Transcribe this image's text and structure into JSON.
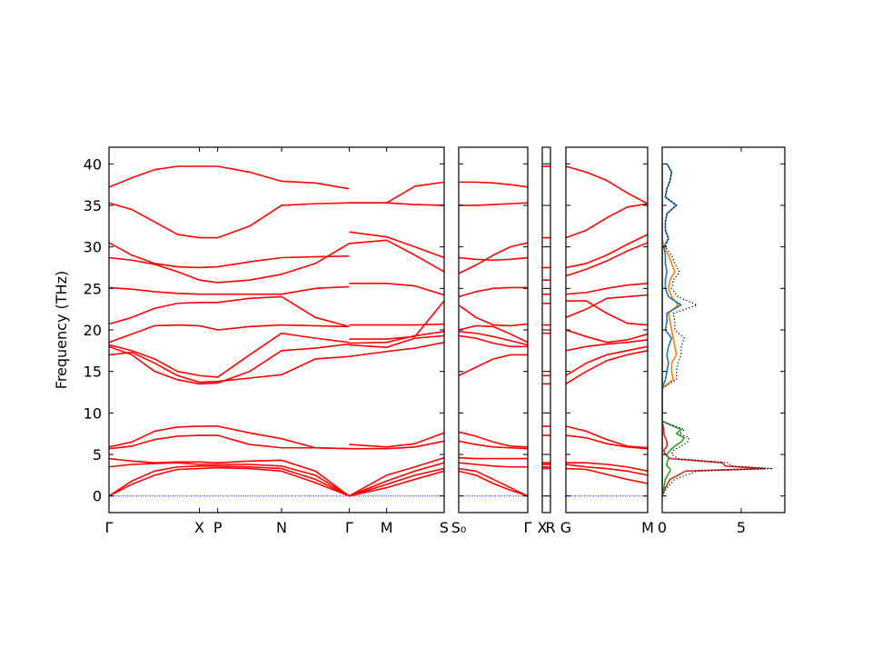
{
  "chart_data": [
    {
      "type": "line",
      "ylabel": "Frequency (THz)",
      "color": "#ff0000",
      "xlim": [
        0,
        3.67
      ],
      "ylim": [
        -2,
        42
      ],
      "yticks": [
        0,
        5,
        10,
        15,
        20,
        25,
        30,
        35,
        40
      ],
      "xticks": [
        {
          "value": 0,
          "label": "Γ"
        },
        {
          "value": 0.99,
          "label": "X"
        },
        {
          "value": 1.19,
          "label": "P"
        },
        {
          "value": 1.89,
          "label": "N"
        },
        {
          "value": 2.63,
          "label": "Γ"
        },
        {
          "value": 3.04,
          "label": "M"
        },
        {
          "value": 3.67,
          "label": "S"
        }
      ],
      "zero_line": true,
      "zero_line_color": "#0000ff",
      "x": [
        0,
        0.25,
        0.5,
        0.75,
        0.99,
        1.19,
        1.54,
        1.89,
        2.26,
        2.63,
        2.63,
        2.63,
        3.04,
        3.35,
        3.67
      ],
      "series": [
        {
          "values": [
            37.2,
            38.3,
            39.3,
            39.7,
            39.7,
            39.7,
            39.0,
            37.9,
            37.7,
            37.0,
            null,
            35.3,
            35.3,
            37.3,
            37.8
          ]
        },
        {
          "values": [
            35.3,
            34.5,
            33.0,
            31.5,
            31.1,
            31.1,
            32.5,
            35.0,
            35.2,
            35.3,
            null,
            35.3,
            35.3,
            35.1,
            35.0
          ]
        },
        {
          "values": [
            30.5,
            29.0,
            28.0,
            27.6,
            27.5,
            27.6,
            28.2,
            28.7,
            28.8,
            28.9,
            null,
            31.8,
            31.2,
            30.0,
            28.7
          ]
        },
        {
          "values": [
            28.7,
            28.4,
            27.9,
            27.0,
            26.0,
            25.7,
            26.0,
            26.7,
            28.0,
            30.4,
            null,
            30.4,
            30.8,
            29.0,
            27.0
          ]
        },
        {
          "values": [
            25.1,
            24.9,
            24.6,
            24.4,
            24.3,
            24.3,
            24.3,
            24.3,
            25.0,
            25.2,
            null,
            25.6,
            25.6,
            25.3,
            24.2
          ]
        },
        {
          "values": [
            20.7,
            21.5,
            22.6,
            23.2,
            23.3,
            23.3,
            23.8,
            24.0,
            21.5,
            20.4,
            null,
            20.6,
            20.6,
            20.6,
            20.7
          ]
        },
        {
          "values": [
            18.5,
            19.5,
            20.5,
            20.6,
            20.5,
            20.0,
            20.4,
            20.6,
            20.5,
            20.4,
            null,
            18.9,
            18.9,
            19.2,
            23.5
          ]
        },
        {
          "values": [
            18.2,
            17.5,
            16.5,
            15.0,
            14.5,
            14.3,
            17.0,
            19.6,
            19.0,
            18.5,
            null,
            18.4,
            18.5,
            19.3,
            19.8
          ]
        },
        {
          "values": [
            18.0,
            17.0,
            15.0,
            14.0,
            13.5,
            13.6,
            15.0,
            17.5,
            17.8,
            18.3,
            null,
            18.2,
            17.9,
            19.0,
            19.3
          ]
        },
        {
          "values": [
            17.0,
            17.3,
            16.0,
            14.5,
            13.7,
            13.8,
            14.2,
            14.6,
            16.5,
            16.8,
            null,
            16.8,
            17.4,
            17.8,
            18.5
          ]
        },
        {
          "values": [
            5.9,
            6.5,
            7.8,
            8.3,
            8.4,
            8.4,
            7.6,
            6.9,
            5.8,
            5.7,
            null,
            6.2,
            5.9,
            6.3,
            7.6
          ]
        },
        {
          "values": [
            5.7,
            6.0,
            6.8,
            7.2,
            7.3,
            7.3,
            6.2,
            5.8,
            5.8,
            5.7,
            null,
            5.7,
            5.7,
            5.9,
            6.6
          ]
        },
        {
          "values": [
            4.5,
            4.2,
            4.0,
            4.1,
            4.1,
            4.0,
            4.2,
            4.3,
            3.0,
            0,
            null,
            0,
            2.5,
            3.5,
            4.6
          ]
        },
        {
          "values": [
            3.5,
            3.8,
            3.9,
            4.0,
            3.8,
            3.8,
            3.8,
            3.6,
            2.5,
            0,
            null,
            0,
            1.8,
            3.0,
            4.0
          ]
        },
        {
          "values": [
            0,
            1.8,
            3.0,
            3.5,
            3.6,
            3.6,
            3.5,
            3.3,
            2.0,
            0,
            null,
            0,
            1.4,
            2.5,
            3.3
          ]
        },
        {
          "values": [
            0,
            1.4,
            2.5,
            3.2,
            3.3,
            3.4,
            3.3,
            3.0,
            1.6,
            0,
            null,
            0,
            1.0,
            2.0,
            3.0
          ]
        }
      ]
    },
    {
      "type": "line",
      "color": "#ff0000",
      "xlim": [
        0,
        0.76
      ],
      "ylim": [
        -2,
        42
      ],
      "yticks": [
        0,
        5,
        10,
        15,
        20,
        25,
        30,
        35,
        40
      ],
      "xticks": [
        {
          "value": 0,
          "label": "S₀"
        },
        {
          "value": 0.76,
          "label": "Γ"
        }
      ],
      "zero_line": true,
      "zero_line_color": "#0000ff",
      "x": [
        0,
        0.19,
        0.38,
        0.57,
        0.76
      ],
      "series": [
        {
          "values": [
            37.8,
            37.8,
            37.7,
            37.5,
            37.2
          ]
        },
        {
          "values": [
            35.0,
            35.0,
            35.1,
            35.2,
            35.3
          ]
        },
        {
          "values": [
            26.8,
            27.8,
            29.0,
            30.0,
            30.5
          ]
        },
        {
          "values": [
            28.7,
            28.5,
            28.4,
            28.5,
            28.7
          ]
        },
        {
          "values": [
            24.0,
            24.6,
            25.0,
            25.1,
            25.1
          ]
        },
        {
          "values": [
            23.0,
            21.5,
            20.6,
            20.5,
            20.7
          ]
        },
        {
          "values": [
            20.0,
            20.5,
            20.4,
            19.5,
            18.5
          ]
        },
        {
          "values": [
            19.8,
            19.6,
            19.2,
            18.7,
            18.2
          ]
        },
        {
          "values": [
            19.3,
            19.0,
            18.4,
            18.0,
            18.0
          ]
        },
        {
          "values": [
            14.5,
            15.5,
            16.5,
            17.0,
            17.0
          ]
        },
        {
          "values": [
            7.7,
            7.2,
            6.5,
            6.0,
            5.9
          ]
        },
        {
          "values": [
            6.6,
            6.2,
            5.9,
            5.8,
            5.7
          ]
        },
        {
          "values": [
            4.6,
            4.5,
            4.5,
            4.5,
            4.5
          ]
        },
        {
          "values": [
            4.0,
            3.8,
            3.6,
            3.5,
            3.5
          ]
        },
        {
          "values": [
            3.3,
            3.0,
            2.0,
            1.0,
            0
          ]
        },
        {
          "values": [
            3.0,
            2.5,
            1.5,
            0.7,
            0
          ]
        }
      ]
    },
    {
      "type": "line",
      "color": "#ff0000",
      "xlim": [
        0,
        0.09
      ],
      "ylim": [
        -2,
        42
      ],
      "yticks": [
        0,
        5,
        10,
        15,
        20,
        25,
        30,
        35,
        40
      ],
      "xticks": [
        {
          "value": 0,
          "label": "X"
        },
        {
          "value": 0.09,
          "label": "R"
        }
      ],
      "zero_line": true,
      "zero_line_color": "#0000ff",
      "x": [
        0,
        0.09
      ],
      "series": [
        {
          "values": [
            39.7,
            39.7
          ]
        },
        {
          "values": [
            31.1,
            31.1
          ]
        },
        {
          "values": [
            27.5,
            27.5
          ]
        },
        {
          "values": [
            26.0,
            26.0
          ]
        },
        {
          "values": [
            24.3,
            24.3
          ]
        },
        {
          "values": [
            23.2,
            23.2
          ]
        },
        {
          "values": [
            20.6,
            20.6
          ]
        },
        {
          "values": [
            19.6,
            19.6
          ]
        },
        {
          "values": [
            14.5,
            14.5
          ]
        },
        {
          "values": [
            13.5,
            13.5
          ]
        },
        {
          "values": [
            8.4,
            8.4
          ]
        },
        {
          "values": [
            7.3,
            7.3
          ]
        },
        {
          "values": [
            4.0,
            4.0
          ]
        },
        {
          "values": [
            3.8,
            3.8
          ]
        },
        {
          "values": [
            3.5,
            3.5
          ]
        },
        {
          "values": [
            3.3,
            3.3
          ]
        }
      ]
    },
    {
      "type": "line",
      "color": "#ff0000",
      "xlim": [
        0,
        0.9
      ],
      "ylim": [
        -2,
        42
      ],
      "yticks": [
        0,
        5,
        10,
        15,
        20,
        25,
        30,
        35,
        40
      ],
      "xticks": [
        {
          "value": 0,
          "label": "G"
        },
        {
          "value": 0.9,
          "label": "M"
        }
      ],
      "zero_line": true,
      "zero_line_color": "#0000ff",
      "x": [
        0,
        0.225,
        0.45,
        0.675,
        0.9
      ],
      "series": [
        {
          "values": [
            39.7,
            39.0,
            38.0,
            36.5,
            35.2
          ]
        },
        {
          "values": [
            31.1,
            32.0,
            33.5,
            34.8,
            35.2
          ]
        },
        {
          "values": [
            27.5,
            28.0,
            29.0,
            30.3,
            31.5
          ]
        },
        {
          "values": [
            26.5,
            27.3,
            28.3,
            29.5,
            30.5
          ]
        },
        {
          "values": [
            24.3,
            24.5,
            25.0,
            25.4,
            25.6
          ]
        },
        {
          "values": [
            23.5,
            23.5,
            22.0,
            20.8,
            20.6
          ]
        },
        {
          "values": [
            21.5,
            22.5,
            23.8,
            24.0,
            24.2
          ]
        },
        {
          "values": [
            20.0,
            19.2,
            18.5,
            18.8,
            19.5
          ]
        },
        {
          "values": [
            17.5,
            18.0,
            18.3,
            18.5,
            18.8
          ]
        },
        {
          "values": [
            14.5,
            16.0,
            17.0,
            17.5,
            18.0
          ]
        },
        {
          "values": [
            13.5,
            15.0,
            16.3,
            17.0,
            17.5
          ]
        },
        {
          "values": [
            8.4,
            7.8,
            6.8,
            6.0,
            5.8
          ]
        },
        {
          "values": [
            7.3,
            7.0,
            6.3,
            5.9,
            5.7
          ]
        },
        {
          "values": [
            4.0,
            4.0,
            3.8,
            3.5,
            3.0
          ]
        },
        {
          "values": [
            3.8,
            3.5,
            3.3,
            3.0,
            2.5
          ]
        },
        {
          "values": [
            3.3,
            3.2,
            2.6,
            2.0,
            1.5
          ]
        }
      ]
    },
    {
      "type": "line",
      "xlim": [
        0,
        7.76
      ],
      "xticks": [
        0,
        5
      ],
      "ylim": [
        -2,
        42
      ],
      "yticks": [
        0,
        5,
        10,
        15,
        20,
        25,
        30,
        35,
        40
      ],
      "y": [
        0,
        1,
        2,
        3,
        3.3,
        3.6,
        4,
        4.5,
        5,
        5.5,
        6,
        6.5,
        7,
        7.5,
        8,
        9,
        13,
        14,
        15,
        16,
        17,
        18,
        19,
        20,
        21,
        22,
        23,
        24,
        25,
        26,
        27,
        28,
        29,
        30,
        31,
        32,
        33,
        34,
        35,
        36,
        37,
        38,
        39,
        40
      ],
      "series": [
        {
          "color": "#d62728",
          "values": [
            0,
            0.2,
            0.5,
            1.5,
            6.5,
            4.0,
            3.8,
            0.5,
            0.2,
            0.1,
            0.3,
            0.3,
            0.2,
            0.1,
            0.1,
            0,
            0,
            0,
            0,
            0,
            0,
            0,
            0,
            0,
            0,
            0,
            0,
            0,
            0,
            0,
            0,
            0,
            0,
            0,
            0,
            0,
            0,
            0,
            0,
            0,
            0,
            0,
            0,
            0
          ]
        },
        {
          "color": "#2ca02c",
          "values": [
            0,
            0.1,
            0.2,
            0.5,
            0.5,
            0.3,
            0.3,
            0.4,
            0.3,
            0.5,
            0.8,
            1.2,
            1.4,
            0.9,
            1.2,
            0,
            0,
            0,
            0,
            0,
            0,
            0,
            0,
            0,
            0,
            0,
            0,
            0,
            0,
            0,
            0,
            0,
            0,
            0,
            0,
            0,
            0,
            0,
            0,
            0,
            0,
            0,
            0,
            0
          ]
        },
        {
          "color": "#ff7f0e",
          "values": [
            0,
            0,
            0,
            0,
            0,
            0,
            0,
            0,
            0,
            0,
            0,
            0,
            0,
            0,
            0,
            0,
            0,
            0.7,
            0.6,
            0.6,
            0.9,
            0.8,
            0.7,
            0.6,
            0.5,
            0.4,
            1.0,
            0.6,
            0.4,
            0.5,
            0.8,
            0.6,
            0.4,
            0.1,
            0,
            0,
            0,
            0,
            0,
            0,
            0,
            0,
            0,
            0
          ]
        },
        {
          "color": "#1f77b4",
          "values": [
            0,
            0,
            0,
            0,
            0,
            0,
            0,
            0,
            0,
            0,
            0,
            0,
            0,
            0,
            0,
            0,
            0,
            0.2,
            0.3,
            0.4,
            0.3,
            0.4,
            0.6,
            0.2,
            0.3,
            0.3,
            1.2,
            0.4,
            0.2,
            0.2,
            0.3,
            0.2,
            0.2,
            0.1,
            0.4,
            0.2,
            0.2,
            0.3,
            0.9,
            0.2,
            0.3,
            0.5,
            0.6,
            0.3
          ]
        },
        {
          "color": "#000000",
          "linestyle": "dotted",
          "values": [
            0,
            0.3,
            0.8,
            2.2,
            7.0,
            4.4,
            4.2,
            1.0,
            0.6,
            0.7,
            1.2,
            1.6,
            1.7,
            1.1,
            1.4,
            0,
            0,
            0.9,
            0.9,
            1.0,
            1.2,
            1.2,
            1.4,
            0.8,
            0.8,
            0.7,
            2.2,
            1.0,
            0.6,
            0.7,
            1.1,
            0.8,
            0.6,
            0.2,
            0.4,
            0.2,
            0.2,
            0.3,
            0.9,
            0.2,
            0.3,
            0.5,
            0.6,
            0.3
          ]
        }
      ]
    }
  ]
}
